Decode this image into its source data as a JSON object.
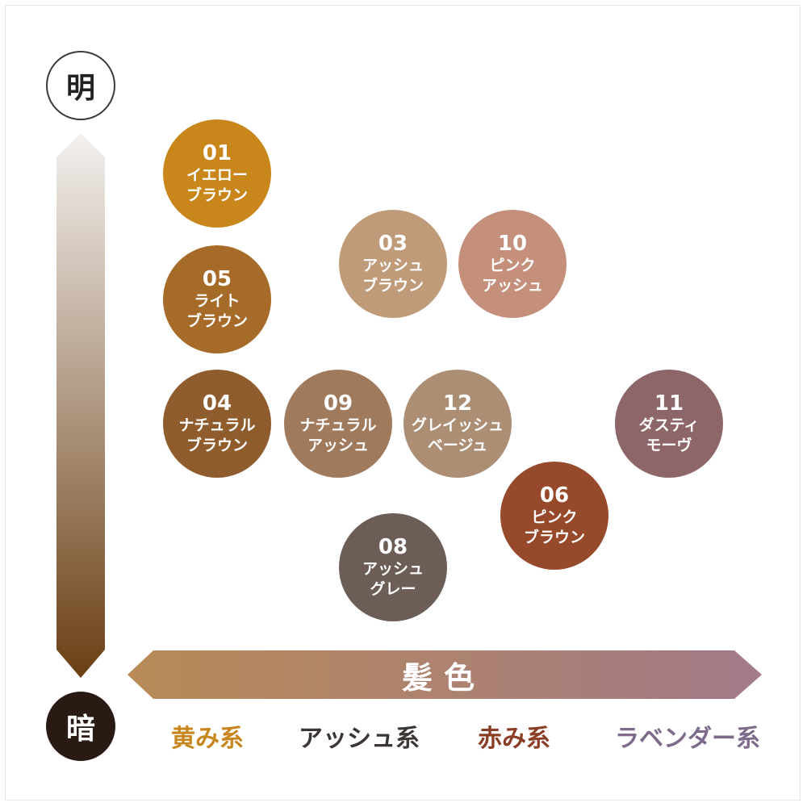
{
  "brightness_axis": {
    "light_label": "明",
    "dark_label": "暗",
    "gradient_top": "#f3f1ef",
    "gradient_bottom": "#6b3f14"
  },
  "hair_color_axis": {
    "label": "髪色",
    "gradient_left": "#b78a57",
    "gradient_right": "#a37a88"
  },
  "categories": [
    {
      "label": "黄み系",
      "color": "#c8861f"
    },
    {
      "label": "アッシュ系",
      "color": "#3b3633"
    },
    {
      "label": "赤み系",
      "color": "#8a3e25"
    },
    {
      "label": "ラベンダー系",
      "color": "#7e6a8a"
    }
  ],
  "swatches": [
    {
      "num": "01",
      "line1": "イエロー",
      "line2": "ブラウン",
      "color": "#c8861b"
    },
    {
      "num": "05",
      "line1": "ライト",
      "line2": "ブラウン",
      "color": "#a66b28"
    },
    {
      "num": "04",
      "line1": "ナチュラル",
      "line2": "ブラウン",
      "color": "#8f5d2d"
    },
    {
      "num": "09",
      "line1": "ナチュラル",
      "line2": "アッシュ",
      "color": "#a07a5d"
    },
    {
      "num": "12",
      "line1": "グレイッシュ",
      "line2": "ベージュ",
      "color": "#ab8e74"
    },
    {
      "num": "03",
      "line1": "アッシュ",
      "line2": "ブラウン",
      "color": "#c09b79"
    },
    {
      "num": "10",
      "line1": "ピンク",
      "line2": "アッシュ",
      "color": "#c48f7b"
    },
    {
      "num": "06",
      "line1": "ピンク",
      "line2": "ブラウン",
      "color": "#97492c"
    },
    {
      "num": "08",
      "line1": "アッシュ",
      "line2": "グレー",
      "color": "#6c5e57"
    },
    {
      "num": "11",
      "line1": "ダスティ",
      "line2": "モーヴ",
      "color": "#8c6668"
    }
  ]
}
